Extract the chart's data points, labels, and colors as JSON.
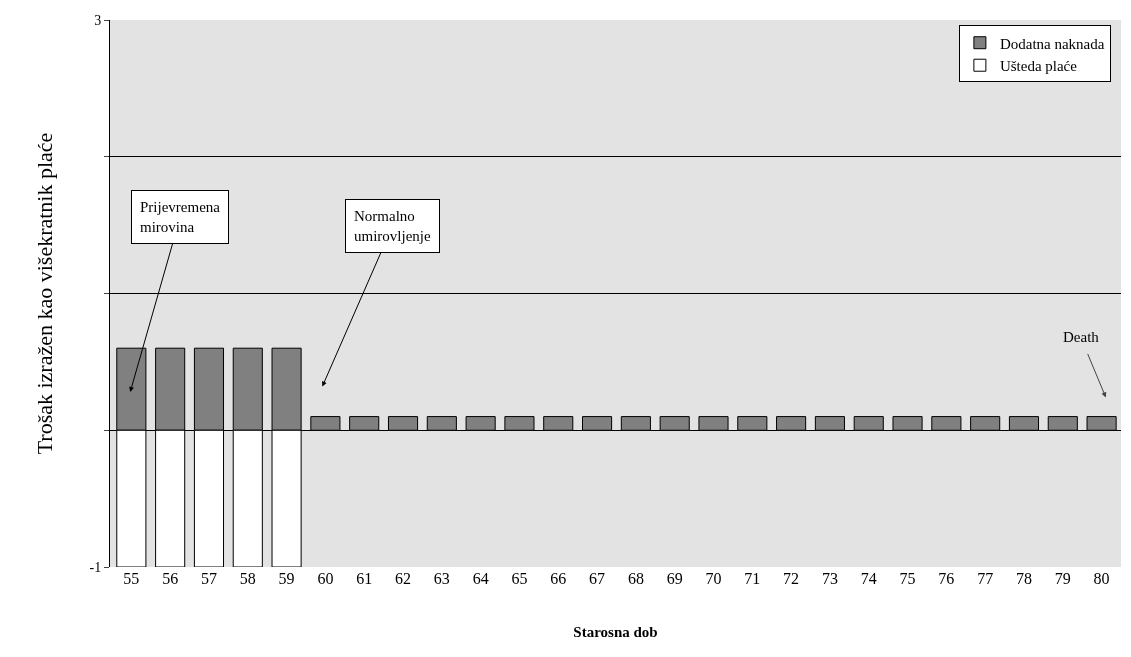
{
  "chart_data": {
    "type": "bar",
    "stacked": true,
    "xlabel": "Starosna dob",
    "ylabel": "Trošak izražen kao višekratnik plaće",
    "categories": [
      "55",
      "56",
      "57",
      "58",
      "59",
      "60",
      "61",
      "62",
      "63",
      "64",
      "65",
      "66",
      "67",
      "68",
      "69",
      "70",
      "71",
      "72",
      "73",
      "74",
      "75",
      "76",
      "77",
      "78",
      "79",
      "80"
    ],
    "series": [
      {
        "name": "Dodatna naknada",
        "color": "#808080",
        "values": [
          0.6,
          0.6,
          0.6,
          0.6,
          0.6,
          0.1,
          0.1,
          0.1,
          0.1,
          0.1,
          0.1,
          0.1,
          0.1,
          0.1,
          0.1,
          0.1,
          0.1,
          0.1,
          0.1,
          0.1,
          0.1,
          0.1,
          0.1,
          0.1,
          0.1,
          0.1
        ]
      },
      {
        "name": "Ušteda plaće",
        "color": "#ffffff",
        "values": [
          -1,
          -1,
          -1,
          -1,
          -1,
          null,
          null,
          null,
          null,
          null,
          null,
          null,
          null,
          null,
          null,
          null,
          null,
          null,
          null,
          null,
          null,
          null,
          null,
          null,
          null,
          null
        ]
      }
    ],
    "ylim": [
      -1,
      3
    ],
    "yticks": [
      -1,
      {
        "value": 0,
        "label": null
      },
      {
        "value": 1,
        "label": null
      },
      {
        "value": 2,
        "label": null
      },
      3
    ],
    "grid": "y",
    "legend": "top right",
    "annotations": [
      "Prijevremena mirovina",
      "Normalno umirovljenje",
      "Death"
    ]
  }
}
